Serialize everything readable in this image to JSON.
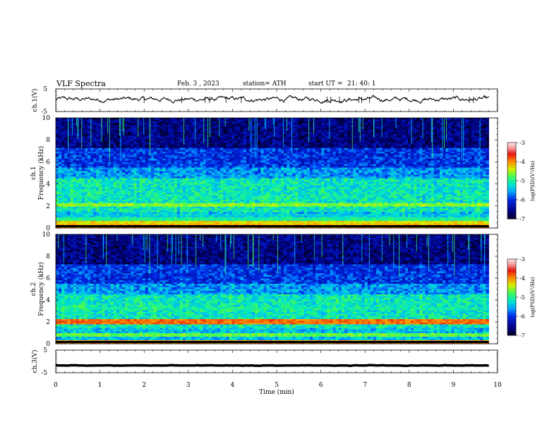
{
  "header": {
    "title": "VLF  Spectra",
    "date": "Feb. 3  , 2023",
    "station": "station= ATH",
    "start_label": "start  UT  =",
    "start_time": "21: 40: 1"
  },
  "chart_data": [
    {
      "type": "line",
      "panel": "ch1-waveform",
      "ylabel": "ch.1(V)",
      "ylim": [
        -5,
        5
      ],
      "yticks": [
        "5",
        "-5"
      ],
      "x_range_min": [
        0,
        9.8
      ],
      "baseline_value": 0.4,
      "noise_amplitude": 0.6,
      "color": "#000000"
    },
    {
      "type": "heatmap",
      "panel": "ch1-spectrogram",
      "ylabel": "ch.1\nFrequency  (kHz)",
      "ylim": [
        0,
        10
      ],
      "yticks": [
        "0",
        "2",
        "4",
        "6",
        "8",
        "10"
      ],
      "x_range_min": [
        0,
        9.8
      ],
      "colorbar": {
        "label": "log(PSD)(V²/Hz)",
        "ticks": [
          "-3",
          "-4",
          "-5",
          "-6",
          "-7"
        ],
        "range": [
          -7,
          -3
        ]
      },
      "bands_khz": [
        {
          "f": 2.1,
          "level": -4.6
        },
        {
          "f": 1.1,
          "level": -5.5
        },
        {
          "f": 0.8,
          "level": -5.0
        },
        {
          "f": 0.5,
          "level": -4.3
        },
        {
          "f": 0.2,
          "level": -4.0
        }
      ]
    },
    {
      "type": "heatmap",
      "panel": "ch2-spectrogram",
      "ylabel": "ch.2\nFrequency  (kHz)",
      "ylim": [
        0,
        10
      ],
      "yticks": [
        "0",
        "2",
        "4",
        "6",
        "8",
        "10"
      ],
      "x_range_min": [
        0,
        9.8
      ],
      "colorbar": {
        "label": "log(PSD)(V²/Hz)",
        "ticks": [
          "-3",
          "-4",
          "-5",
          "-6",
          "-7"
        ],
        "range": [
          -7,
          -3
        ]
      },
      "bands_khz": [
        {
          "f": 2.0,
          "level": -3.9
        },
        {
          "f": 1.9,
          "level": -4.3
        },
        {
          "f": 3.2,
          "level": -5.2
        },
        {
          "f": 0.8,
          "level": -4.7
        },
        {
          "f": 0.2,
          "level": -4.0
        }
      ]
    },
    {
      "type": "line",
      "panel": "ch3-waveform",
      "ylabel": "ch.3(V)",
      "ylim": [
        -5,
        5
      ],
      "yticks": [
        "5",
        "-5"
      ],
      "x_range_min": [
        0,
        9.8
      ],
      "baseline_value": -1.8,
      "noise_amplitude": 0.05,
      "color": "#000000",
      "xlabel": "Time  (min)",
      "xlim": [
        0,
        10
      ],
      "xticks": [
        "0",
        "1",
        "2",
        "3",
        "4",
        "5",
        "6",
        "7",
        "8",
        "9",
        "10"
      ]
    }
  ]
}
